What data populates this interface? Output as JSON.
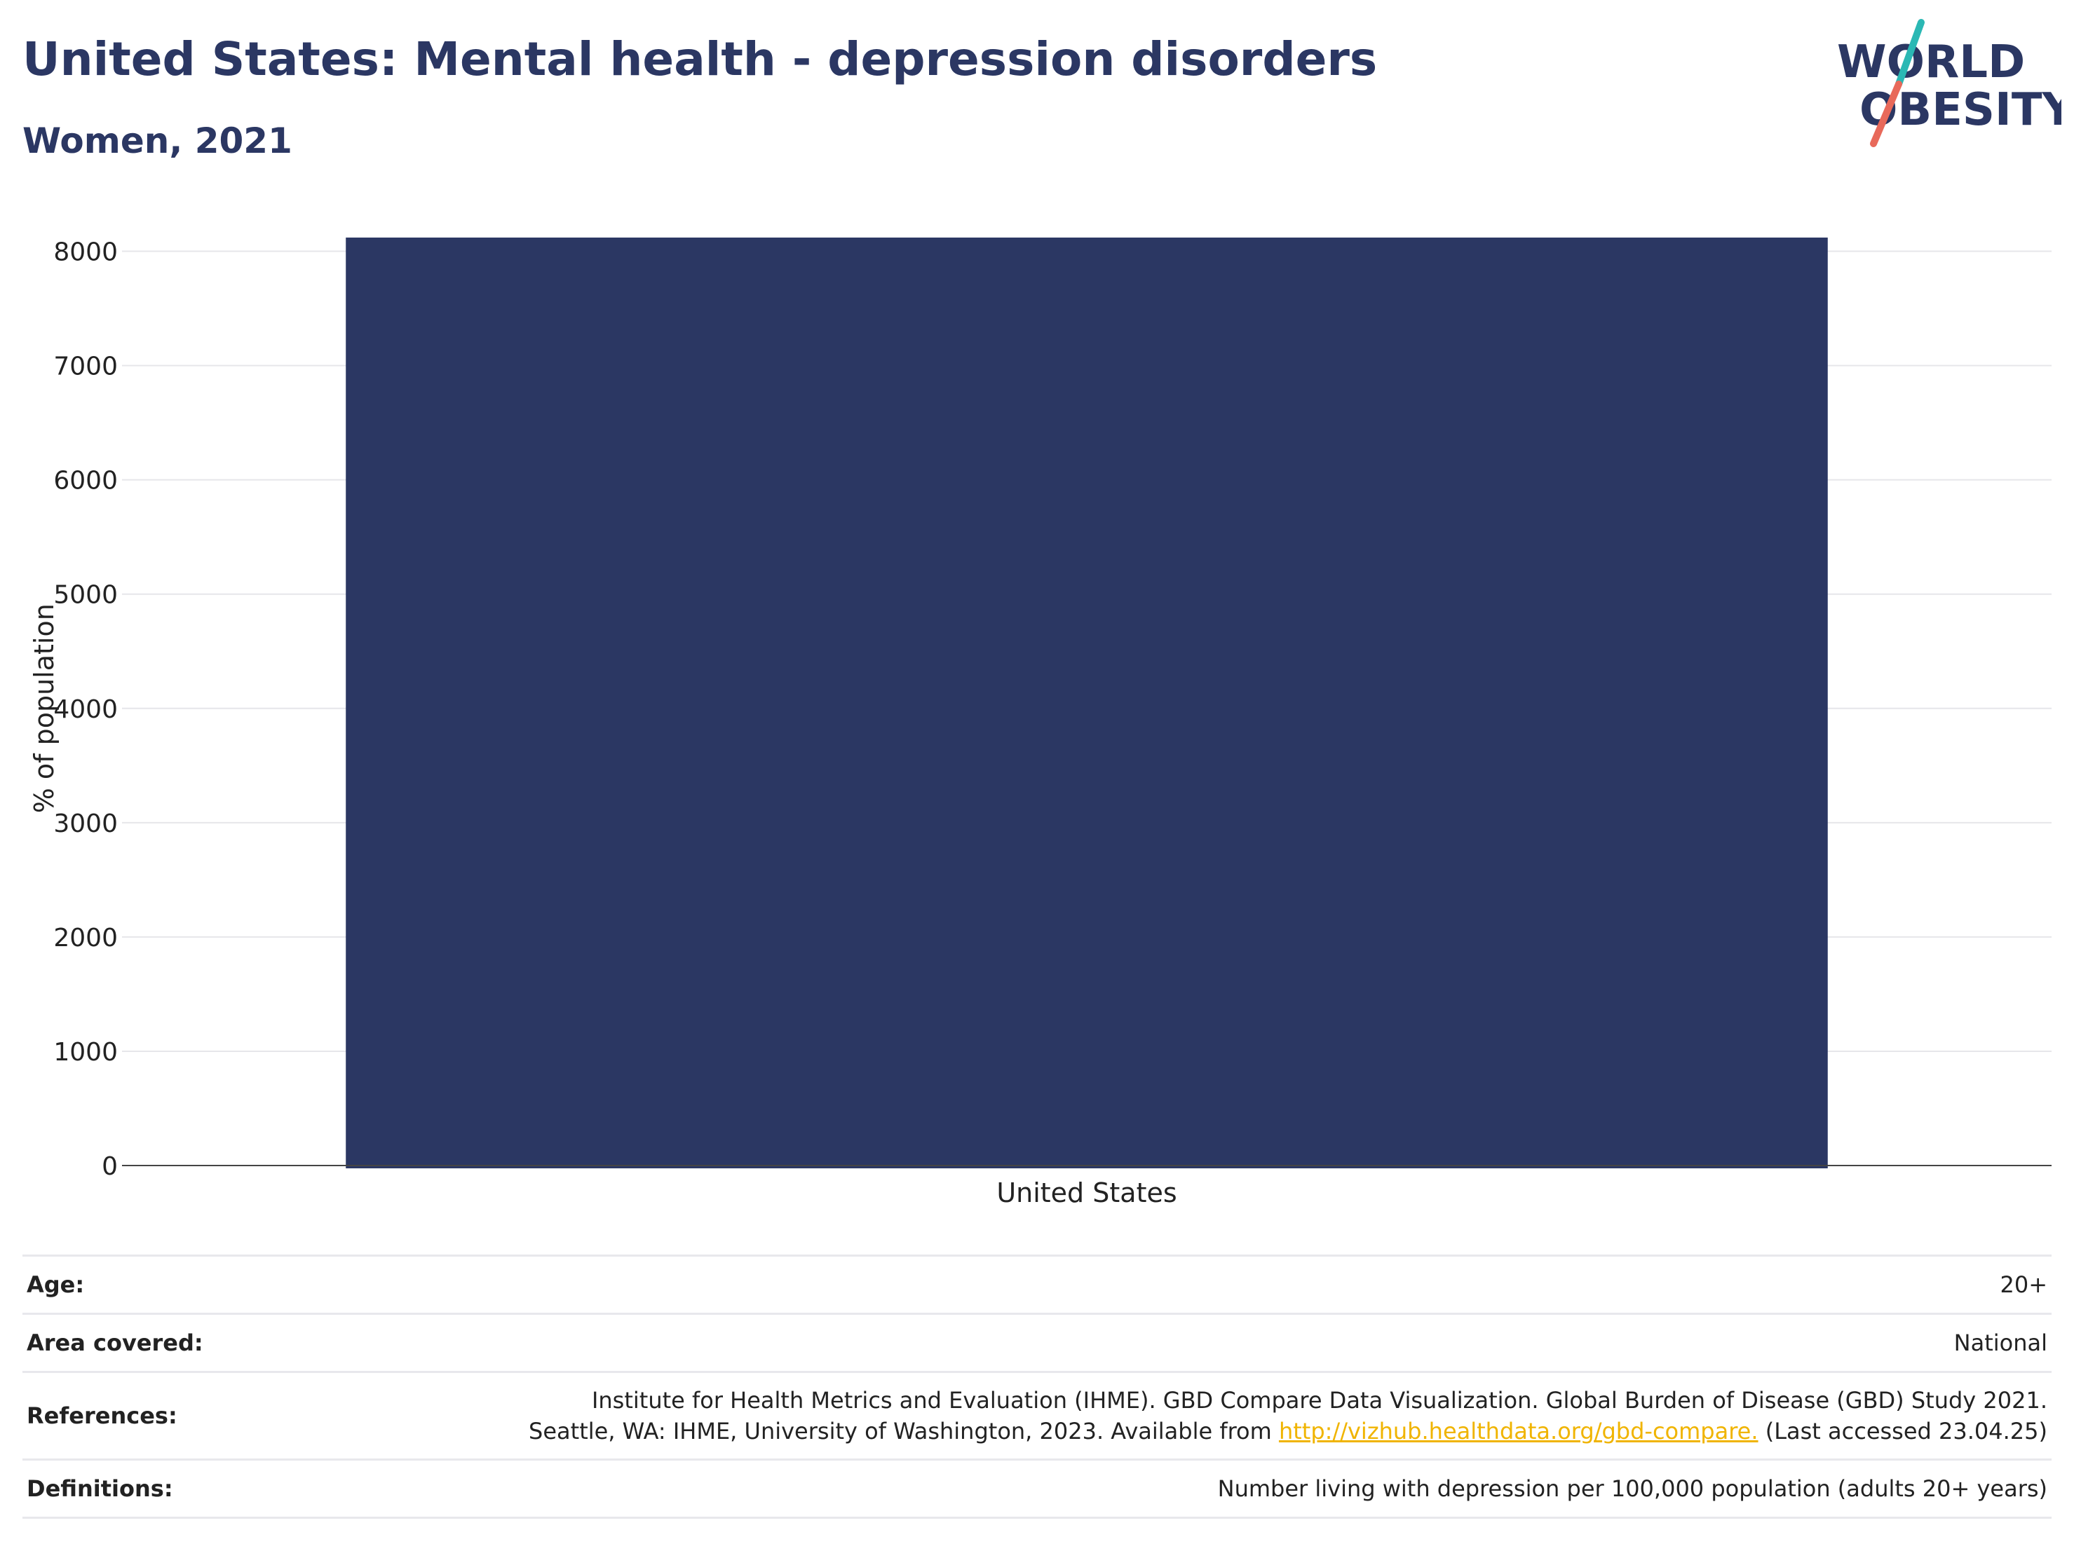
{
  "header": {
    "title": "United States: Mental health - depression disorders",
    "subtitle": "Women, 2021"
  },
  "logo": {
    "line1": "WORLD",
    "line2": "OBESITY",
    "color_text": "#2b3763",
    "color_slash_top": "#2bb8b4",
    "color_slash_bottom": "#e8695a"
  },
  "chart_data": {
    "type": "bar",
    "categories": [
      "United States"
    ],
    "values": [
      8120
    ],
    "title": "United States: Mental health - depression disorders",
    "subtitle": "Women, 2021",
    "xlabel": "",
    "ylabel": "% of population",
    "ylim": [
      0,
      8000
    ],
    "yticks": [
      0,
      1000,
      2000,
      3000,
      4000,
      5000,
      6000,
      7000,
      8000
    ],
    "grid": true,
    "bar_color": "#2b3763"
  },
  "info": {
    "age_label": "Age:",
    "age_value": "20+",
    "area_label": "Area covered:",
    "area_value": "National",
    "references_label": "References:",
    "references_line1": "Institute for Health Metrics and Evaluation (IHME). GBD Compare Data Visualization. Global Burden of Disease (GBD) Study 2021.",
    "references_line2_pre": "Seattle, WA: IHME, University of Washington, 2023. Available from",
    "references_link": "http://vizhub.healthdata.org/gbd-compare.",
    "references_line2_post": "(Last accessed 23.04.25)",
    "definitions_label": "Definitions:",
    "definitions_value": "Number living with depression per 100,000 population (adults 20+ years)"
  }
}
